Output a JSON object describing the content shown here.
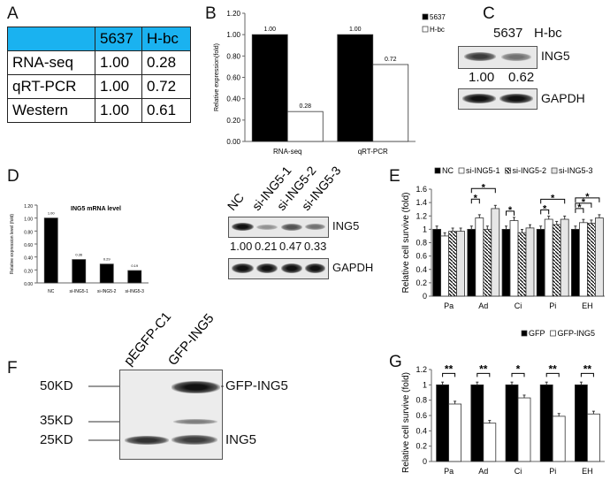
{
  "panels": {
    "a": "A",
    "b": "B",
    "c": "C",
    "d": "D",
    "e": "E",
    "f": "F",
    "g": "G"
  },
  "table_a": {
    "header": [
      "",
      "5637",
      "H-bc"
    ],
    "rows": [
      [
        "RNA-seq",
        "1.00",
        "0.28"
      ],
      [
        "qRT-PCR",
        "1.00",
        "0.72"
      ],
      [
        "Western",
        "1.00",
        "0.61"
      ]
    ],
    "header_color": "#1ab2f0"
  },
  "blot_c": {
    "lanes": [
      "5637",
      "H-bc"
    ],
    "target": "ING5",
    "values": [
      "1.00",
      "0.62"
    ],
    "control": "GAPDH"
  },
  "blot_d": {
    "lanes": [
      "NC",
      "si-ING5-1",
      "si-ING5-2",
      "si-ING5-3"
    ],
    "target": "ING5",
    "values": [
      "1.00",
      "0.21",
      "0.47",
      "0.33"
    ],
    "control": "GAPDH"
  },
  "blot_f": {
    "lanes": [
      "pEGFP-C1",
      "GFP-ING5"
    ],
    "markers": [
      "50KD",
      "35KD",
      "25KD"
    ],
    "bands": [
      "GFP-ING5",
      "ING5"
    ]
  },
  "chart_data": [
    {
      "id": "B",
      "type": "bar",
      "categories": [
        "RNA-seq",
        "qRT-PCR"
      ],
      "ylabel": "Relative expression(fold)",
      "ylim": [
        0,
        1.2
      ],
      "yticks": [
        "0.00",
        "0.20",
        "0.40",
        "0.60",
        "0.80",
        "1.00",
        "1.20"
      ],
      "legend": "top-right",
      "series": [
        {
          "name": "5637",
          "color": "#000000",
          "values": [
            1.0,
            1.0
          ],
          "labels": [
            "1.00",
            "1.00"
          ]
        },
        {
          "name": "H-bc",
          "color": "#ffffff",
          "values": [
            0.28,
            0.72
          ],
          "labels": [
            "0.28",
            "0.72"
          ]
        }
      ]
    },
    {
      "id": "D",
      "type": "bar",
      "title": "ING5 mRNA level",
      "categories": [
        "NC",
        "si-ING5-1",
        "si-ING5-2",
        "si-ING5-3"
      ],
      "ylabel": "Relative expression level (fold)",
      "ylim": [
        0,
        1.2
      ],
      "yticks": [
        "0.00",
        "0.20",
        "0.40",
        "0.60",
        "0.80",
        "1.00",
        "1.20"
      ],
      "series": [
        {
          "color": "#000000",
          "values": [
            1.0,
            0.36,
            0.29,
            0.19
          ],
          "labels": [
            "1.00",
            "0.36",
            "0.29",
            "0.19"
          ]
        }
      ]
    },
    {
      "id": "E",
      "type": "bar",
      "categories": [
        "Pa",
        "Ad",
        "Ci",
        "Pi",
        "EH"
      ],
      "ylabel": "Relative cell survive (fold)",
      "ylim": [
        0,
        1.6
      ],
      "yticks": [
        "0",
        "0.2",
        "0.4",
        "0.6",
        "0.8",
        "1",
        "1.2",
        "1.4",
        "1.6"
      ],
      "legend": "top-right",
      "series": [
        {
          "name": "NC",
          "color": "#000000",
          "values": [
            1.0,
            1.0,
            1.0,
            1.0,
            1.0
          ]
        },
        {
          "name": "si-ING5-1",
          "color": "#ffffff",
          "values": [
            0.9,
            1.17,
            1.13,
            1.15,
            1.1
          ]
        },
        {
          "name": "si-ING5-2",
          "color": "hatch",
          "values": [
            0.97,
            1.0,
            0.95,
            1.07,
            1.09
          ]
        },
        {
          "name": "si-ING5-3",
          "color": "#e6e6e6",
          "values": [
            0.97,
            1.31,
            1.02,
            1.15,
            1.17
          ]
        }
      ],
      "significance": "*"
    },
    {
      "id": "G",
      "type": "bar",
      "categories": [
        "Pa",
        "Ad",
        "Ci",
        "Pi",
        "EH"
      ],
      "ylabel": "Relative cell survive (fold)",
      "ylim": [
        0,
        1.2
      ],
      "yticks": [
        "0",
        "0.2",
        "0.4",
        "0.6",
        "0.8",
        "1",
        "1.2"
      ],
      "legend": "top-right",
      "series": [
        {
          "name": "GFP",
          "color": "#000000",
          "values": [
            1.0,
            1.0,
            1.0,
            1.0,
            1.0
          ]
        },
        {
          "name": "GFP-ING5",
          "color": "#ffffff",
          "values": [
            0.75,
            0.5,
            0.83,
            0.59,
            0.62
          ]
        }
      ],
      "significance": [
        "**",
        "**",
        "*",
        "**",
        "**"
      ]
    }
  ]
}
